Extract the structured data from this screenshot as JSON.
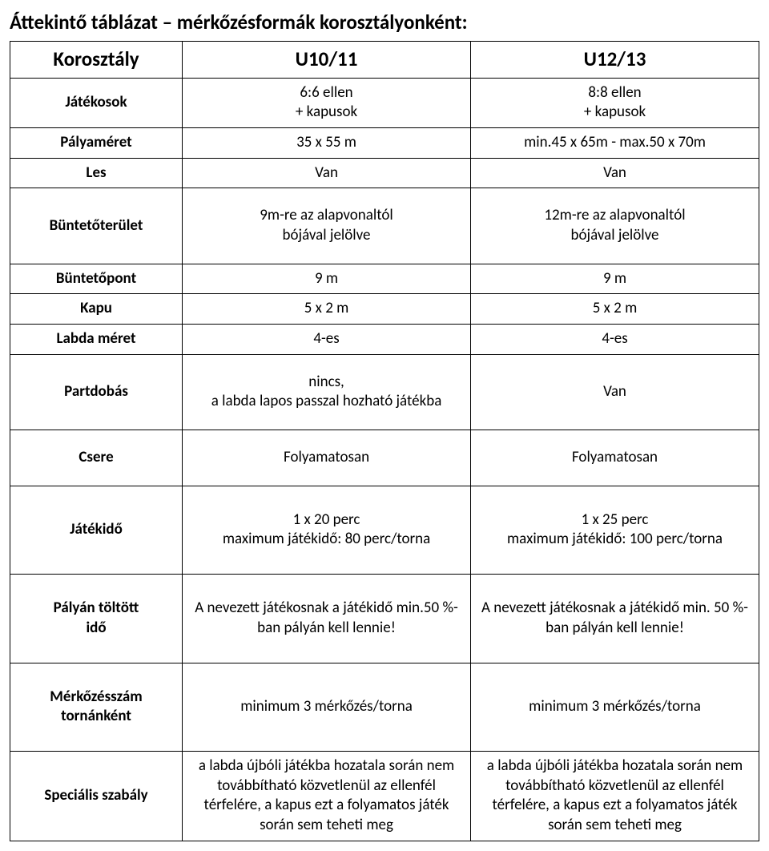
{
  "title": "Áttekintő táblázat – mérkőzésformák korosztályonként:",
  "header": {
    "label": "Korosztály",
    "col1": "U10/11",
    "col2": "U12/13"
  },
  "rows": {
    "jatekosok": {
      "label": "Játékosok",
      "c1": "6:6 ellen\n+ kapusok",
      "c2": "8:8 ellen\n+ kapusok"
    },
    "palyameret": {
      "label": "Pályaméret",
      "c1": "35 x 55 m",
      "c2": "min.45 x 65m - max.50 x 70m"
    },
    "les": {
      "label": "Les",
      "c1": "Van",
      "c2": "Van"
    },
    "buntetoterulet": {
      "label": "Büntetőterület",
      "c1": "9m-re az alapvonaltól\nbójával jelölve",
      "c2": "12m-re az alapvonaltól\nbójával jelölve"
    },
    "buntetopont": {
      "label": "Büntetőpont",
      "c1": "9 m",
      "c2": "9 m"
    },
    "kapu": {
      "label": "Kapu",
      "c1": "5 x 2 m",
      "c2": "5 x 2 m"
    },
    "labdameret": {
      "label": "Labda méret",
      "c1": "4-es",
      "c2": "4-es"
    },
    "partdobas": {
      "label": "Partdobás",
      "c1": "nincs,\na labda lapos passzal hozható játékba",
      "c2": "Van"
    },
    "csere": {
      "label": "Csere",
      "c1": "Folyamatosan",
      "c2": "Folyamatosan"
    },
    "jatekido": {
      "label": "Játékidő",
      "c1": "1 x 20 perc\nmaximum játékidő: 80 perc/torna",
      "c2": "1 x 25 perc\nmaximum játékidő: 100 perc/torna"
    },
    "palyantoltott": {
      "label": "Pályán töltött\nidő",
      "c1": "A nevezett játékosnak a játékidő min.50 %-ban pályán kell lennie!",
      "c2": "A nevezett játékosnak a játékidő min. 50 %-ban pályán kell lennie!"
    },
    "merkozesszam": {
      "label": "Mérkőzésszám\ntornánként",
      "c1": "minimum 3 mérkőzés/torna",
      "c2": "minimum 3 mérkőzés/torna"
    },
    "specialis": {
      "label": "Speciális szabály",
      "c1": "a labda újbóli játékba hozatala során nem továbbítható közvetlenül az ellenfél térfelére, a kapus ezt a folyamatos játék során sem teheti meg",
      "c2": "a labda újbóli játékba hozatala során nem továbbítható közvetlenül az ellenfél térfelére, a kapus ezt a folyamatos játék során sem teheti meg"
    }
  }
}
